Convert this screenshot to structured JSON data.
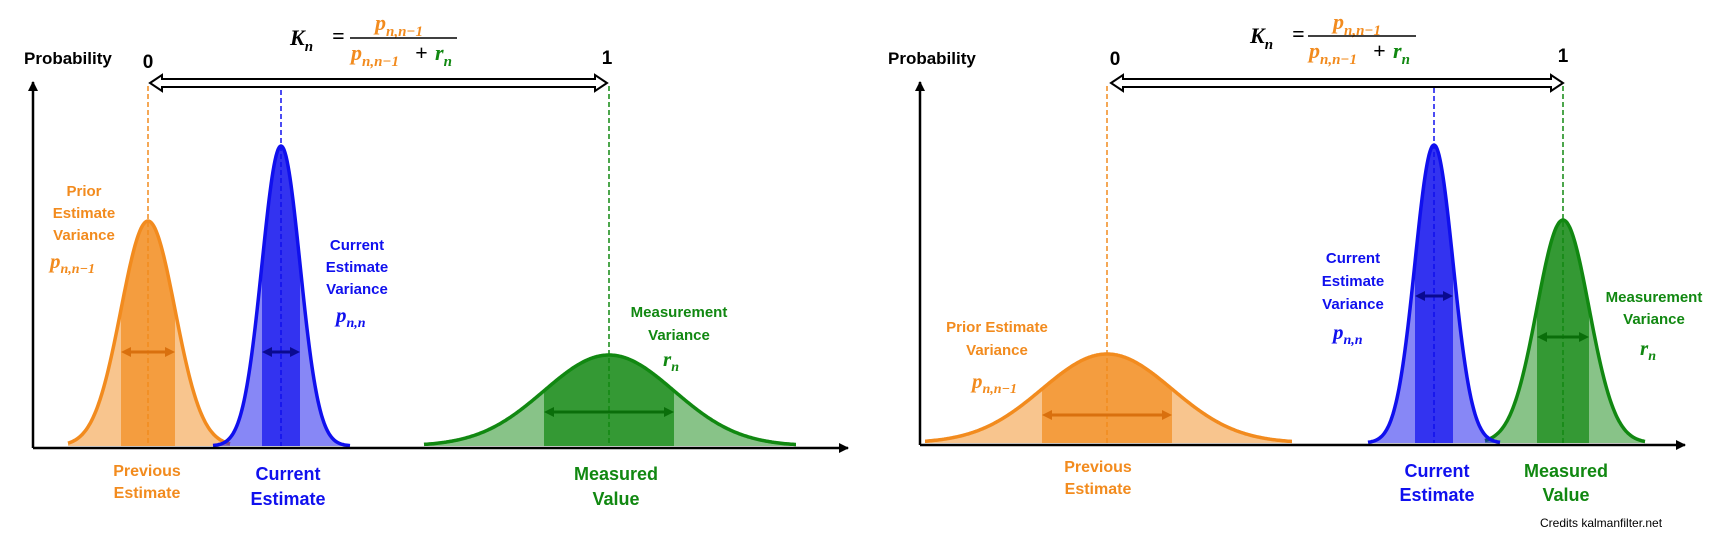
{
  "colors": {
    "orange": "#F28B1E",
    "orange_dark": "#D9700E",
    "blue": "#1010EE",
    "green": "#118811",
    "axis": "#000000",
    "text": "#000000"
  },
  "panels": [
    {
      "y_axis_label": "Probability",
      "scale_start": "0",
      "scale_end": "1",
      "gain": {
        "lhs": "K",
        "lhs_sub": "n",
        "equals": "=",
        "num": "p",
        "num_sub": "n,n−1",
        "den_a": "p",
        "den_a_sub": "n,n−1",
        "plus": "+",
        "den_b": "r",
        "den_b_sub": "n"
      },
      "prior_variance": {
        "lines": [
          "Prior",
          "Estimate",
          "Variance"
        ],
        "symbol": "p",
        "symbol_sub": "n,n−1"
      },
      "current_variance": {
        "lines": [
          "Current",
          "Estimate",
          "Variance"
        ],
        "symbol": "p",
        "symbol_sub": "n,n"
      },
      "measurement_variance": {
        "lines": [
          "Measurement",
          "Variance"
        ],
        "symbol": "r",
        "symbol_sub": "n"
      },
      "bottom_labels": {
        "previous": [
          "Previous",
          "Estimate"
        ],
        "current": [
          "Current",
          "Estimate"
        ],
        "measured": [
          "Measured",
          "Value"
        ]
      }
    },
    {
      "y_axis_label": "Probability",
      "scale_start": "0",
      "scale_end": "1",
      "gain": {
        "lhs": "K",
        "lhs_sub": "n",
        "equals": "=",
        "num": "p",
        "num_sub": "n,n−1",
        "den_a": "p",
        "den_a_sub": "n,n−1",
        "plus": "+",
        "den_b": "r",
        "den_b_sub": "n"
      },
      "prior_variance": {
        "lines": [
          "Prior Estimate",
          "Variance"
        ],
        "symbol": "p",
        "symbol_sub": "n,n−1"
      },
      "current_variance": {
        "lines": [
          "Current",
          "Estimate",
          "Variance"
        ],
        "symbol": "p",
        "symbol_sub": "n,n"
      },
      "measurement_variance": {
        "lines": [
          "Measurement",
          "Variance"
        ],
        "symbol": "r",
        "symbol_sub": "n"
      },
      "bottom_labels": {
        "previous": [
          "Previous",
          "Estimate"
        ],
        "current": [
          "Current",
          "Estimate"
        ],
        "measured": [
          "Measured",
          "Value"
        ]
      }
    }
  ],
  "credits": "Credits kalmanfilter.net"
}
